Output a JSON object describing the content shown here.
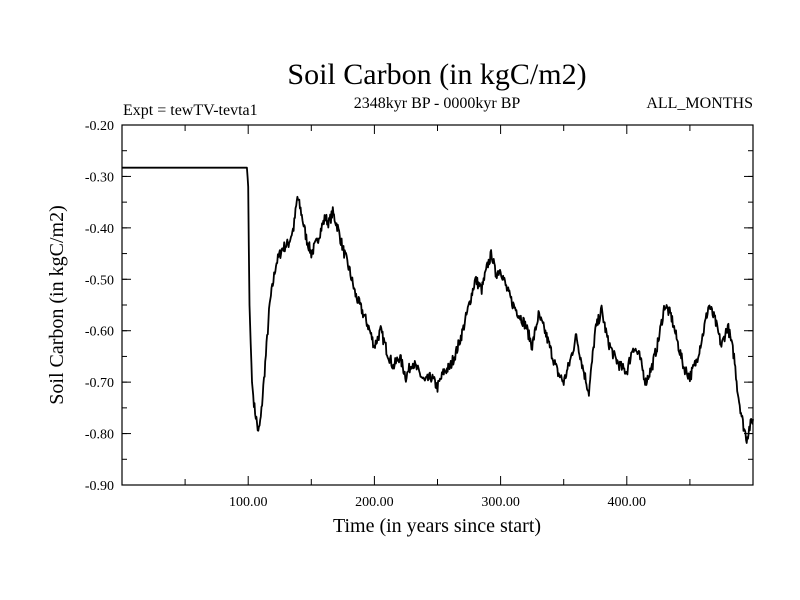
{
  "chart_data": {
    "type": "line",
    "title": "Soil Carbon (in kgC/m2)",
    "subtitle_left": "Expt = tewTV-tevta1",
    "subtitle_center": "2348kyr BP - 0000kyr BP",
    "subtitle_right": "ALL_MONTHS",
    "xlabel": "Time (in years since start)",
    "ylabel": "Soil Carbon (in kgC/m2)",
    "xlim": [
      0,
      500
    ],
    "ylim": [
      -0.9,
      -0.2
    ],
    "x_ticks": [
      100,
      200,
      300,
      400
    ],
    "x_tick_labels": [
      "100.00",
      "200.00",
      "300.00",
      "400.00"
    ],
    "y_ticks": [
      -0.9,
      -0.8,
      -0.7,
      -0.6,
      -0.5,
      -0.4,
      -0.3,
      -0.2
    ],
    "y_tick_labels": [
      "-0.90",
      "-0.80",
      "-0.70",
      "-0.60",
      "-0.50",
      "-0.40",
      "-0.30",
      "-0.20"
    ],
    "series": [
      {
        "name": "Soil Carbon",
        "color": "#000000",
        "x": [
          0,
          99,
          100,
          101,
          103,
          105,
          107,
          108,
          110,
          113,
          117,
          122,
          127,
          132,
          136,
          139,
          142,
          146,
          150,
          154,
          158,
          161,
          164,
          167,
          171,
          175,
          180,
          185,
          190,
          195,
          200,
          205,
          210,
          215,
          220,
          225,
          230,
          235,
          240,
          245,
          250,
          255,
          260,
          265,
          270,
          275,
          280,
          285,
          290,
          293,
          296,
          300,
          305,
          310,
          315,
          320,
          325,
          330,
          335,
          340,
          345,
          350,
          355,
          360,
          365,
          370,
          375,
          380,
          385,
          390,
          395,
          400,
          405,
          410,
          415,
          420,
          425,
          430,
          435,
          440,
          445,
          450,
          455,
          460,
          465,
          470,
          475,
          480,
          485,
          488,
          492,
          495,
          497,
          500
        ],
        "y": [
          -0.283,
          -0.283,
          -0.32,
          -0.55,
          -0.7,
          -0.75,
          -0.78,
          -0.8,
          -0.77,
          -0.68,
          -0.55,
          -0.47,
          -0.44,
          -0.43,
          -0.4,
          -0.34,
          -0.37,
          -0.42,
          -0.45,
          -0.43,
          -0.4,
          -0.38,
          -0.39,
          -0.37,
          -0.4,
          -0.44,
          -0.48,
          -0.53,
          -0.56,
          -0.59,
          -0.63,
          -0.6,
          -0.64,
          -0.67,
          -0.65,
          -0.69,
          -0.66,
          -0.68,
          -0.7,
          -0.69,
          -0.71,
          -0.68,
          -0.67,
          -0.64,
          -0.6,
          -0.55,
          -0.5,
          -0.52,
          -0.47,
          -0.45,
          -0.49,
          -0.48,
          -0.52,
          -0.55,
          -0.57,
          -0.59,
          -0.63,
          -0.57,
          -0.6,
          -0.64,
          -0.68,
          -0.7,
          -0.66,
          -0.61,
          -0.67,
          -0.72,
          -0.6,
          -0.56,
          -0.62,
          -0.65,
          -0.67,
          -0.68,
          -0.63,
          -0.65,
          -0.7,
          -0.67,
          -0.62,
          -0.55,
          -0.57,
          -0.62,
          -0.67,
          -0.69,
          -0.66,
          -0.61,
          -0.55,
          -0.58,
          -0.63,
          -0.59,
          -0.65,
          -0.72,
          -0.78,
          -0.81,
          -0.79,
          -0.77
        ]
      }
    ]
  }
}
